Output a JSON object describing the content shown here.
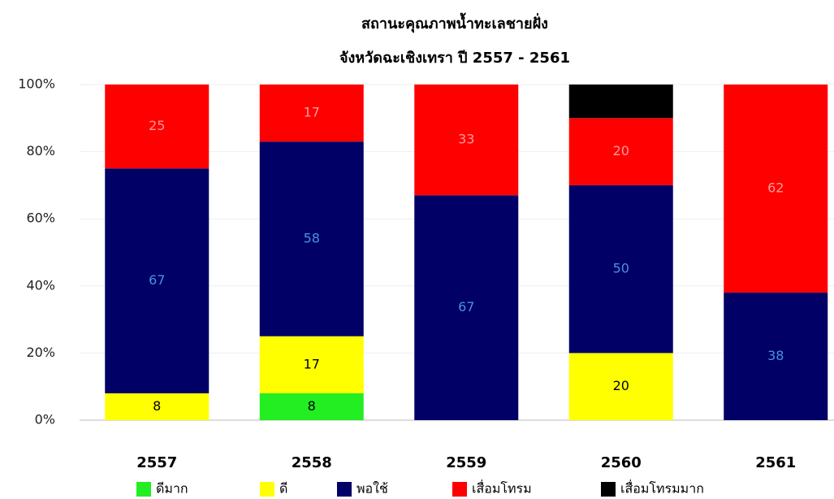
{
  "chart_data": {
    "type": "stacked_bar",
    "title": "สถานะคุณภาพน้ำทะเลชายฝั่ง",
    "subtitle": "จังหวัดฉะเชิงเทรา ปี 2557 - 2561",
    "categories": [
      "2557",
      "2558",
      "2559",
      "2560",
      "2561"
    ],
    "series": [
      {
        "name": "ดีมาก",
        "color": "#22ee22",
        "label_color": "#000000",
        "values": [
          0,
          8,
          0,
          0,
          0
        ]
      },
      {
        "name": "ดี",
        "color": "#ffff00",
        "label_color": "#000000",
        "values": [
          8,
          17,
          0,
          20,
          0
        ]
      },
      {
        "name": "พอใช้",
        "color": "#000066",
        "label_color": "#4a8fe0",
        "values": [
          67,
          58,
          67,
          50,
          38
        ]
      },
      {
        "name": "เสื่อมโทรม",
        "color": "#ff0000",
        "label_color": "#ff9a9a",
        "values": [
          25,
          17,
          33,
          20,
          62
        ]
      },
      {
        "name": "เสื่อมโทรมมาก",
        "color": "#000000",
        "label_color": "#000000",
        "show_labels": false,
        "values": [
          0,
          0,
          0,
          10,
          0
        ]
      }
    ],
    "ylim": [
      0,
      100
    ],
    "yticks": [
      {
        "value": 0,
        "label": "0%"
      },
      {
        "value": 20,
        "label": "20%"
      },
      {
        "value": 40,
        "label": "40%"
      },
      {
        "value": 60,
        "label": "60%"
      },
      {
        "value": 80,
        "label": "80%"
      },
      {
        "value": 100,
        "label": "100%"
      }
    ],
    "grid": true
  }
}
